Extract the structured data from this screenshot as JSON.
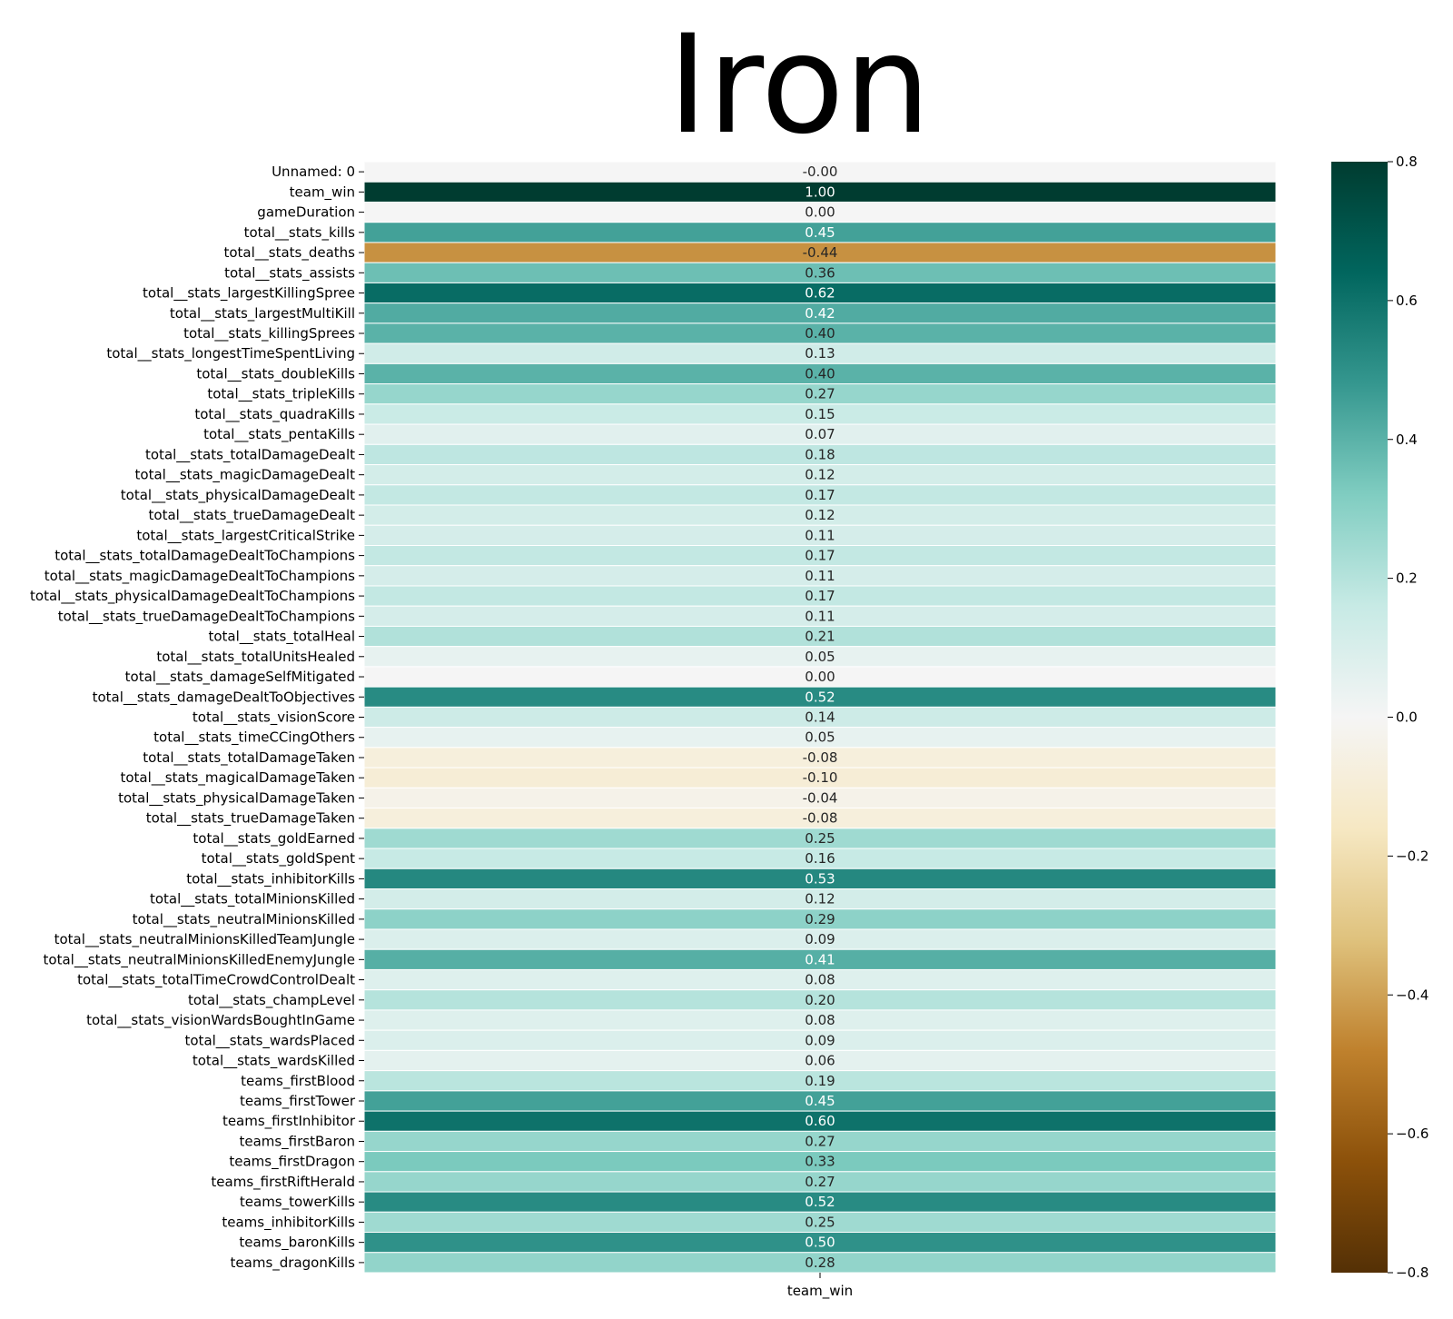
{
  "chart_data": {
    "type": "heatmap",
    "title": "Iron",
    "x_categories": [
      "team_win"
    ],
    "row_labels": [
      "Unnamed: 0",
      "team_win",
      "gameDuration",
      "total__stats_kills",
      "total__stats_deaths",
      "total__stats_assists",
      "total__stats_largestKillingSpree",
      "total__stats_largestMultiKill",
      "total__stats_killingSprees",
      "total__stats_longestTimeSpentLiving",
      "total__stats_doubleKills",
      "total__stats_tripleKills",
      "total__stats_quadraKills",
      "total__stats_pentaKills",
      "total__stats_totalDamageDealt",
      "total__stats_magicDamageDealt",
      "total__stats_physicalDamageDealt",
      "total__stats_trueDamageDealt",
      "total__stats_largestCriticalStrike",
      "total__stats_totalDamageDealtToChampions",
      "total__stats_magicDamageDealtToChampions",
      "total__stats_physicalDamageDealtToChampions",
      "total__stats_trueDamageDealtToChampions",
      "total__stats_totalHeal",
      "total__stats_totalUnitsHealed",
      "total__stats_damageSelfMitigated",
      "total__stats_damageDealtToObjectives",
      "total__stats_visionScore",
      "total__stats_timeCCingOthers",
      "total__stats_totalDamageTaken",
      "total__stats_magicalDamageTaken",
      "total__stats_physicalDamageTaken",
      "total__stats_trueDamageTaken",
      "total__stats_goldEarned",
      "total__stats_goldSpent",
      "total__stats_inhibitorKills",
      "total__stats_totalMinionsKilled",
      "total__stats_neutralMinionsKilled",
      "total__stats_neutralMinionsKilledTeamJungle",
      "total__stats_neutralMinionsKilledEnemyJungle",
      "total__stats_totalTimeCrowdControlDealt",
      "total__stats_champLevel",
      "total__stats_visionWardsBoughtInGame",
      "total__stats_wardsPlaced",
      "total__stats_wardsKilled",
      "teams_firstBlood",
      "teams_firstTower",
      "teams_firstInhibitor",
      "teams_firstBaron",
      "teams_firstDragon",
      "teams_firstRiftHerald",
      "teams_towerKills",
      "teams_inhibitorKills",
      "teams_baronKills",
      "teams_dragonKills"
    ],
    "values": [
      -0.001,
      1.0,
      0.0,
      0.45,
      -0.44,
      0.36,
      0.62,
      0.42,
      0.4,
      0.13,
      0.4,
      0.27,
      0.15,
      0.07,
      0.18,
      0.12,
      0.17,
      0.12,
      0.11,
      0.17,
      0.11,
      0.17,
      0.11,
      0.21,
      0.05,
      0.0,
      0.52,
      0.14,
      0.05,
      -0.08,
      -0.1,
      -0.04,
      -0.08,
      0.25,
      0.16,
      0.53,
      0.12,
      0.29,
      0.09,
      0.41,
      0.08,
      0.2,
      0.08,
      0.09,
      0.06,
      0.19,
      0.45,
      0.6,
      0.27,
      0.33,
      0.27,
      0.52,
      0.25,
      0.5,
      0.28
    ],
    "value_labels": [
      "-0.00",
      "1.00",
      "0.00",
      "0.45",
      "-0.44",
      "0.36",
      "0.62",
      "0.42",
      "0.40",
      "0.13",
      "0.40",
      "0.27",
      "0.15",
      "0.07",
      "0.18",
      "0.12",
      "0.17",
      "0.12",
      "0.11",
      "0.17",
      "0.11",
      "0.17",
      "0.11",
      "0.21",
      "0.05",
      "0.00",
      "0.52",
      "0.14",
      "0.05",
      "-0.08",
      "-0.10",
      "-0.04",
      "-0.08",
      "0.25",
      "0.16",
      "0.53",
      "0.12",
      "0.29",
      "0.09",
      "0.41",
      "0.08",
      "0.20",
      "0.08",
      "0.09",
      "0.06",
      "0.19",
      "0.45",
      "0.60",
      "0.27",
      "0.33",
      "0.27",
      "0.52",
      "0.25",
      "0.50",
      "0.28"
    ],
    "colorbar": {
      "vmin": -0.8,
      "vmax": 0.8,
      "ticks": [
        0.8,
        0.6,
        0.4,
        0.2,
        0.0,
        -0.2,
        -0.4,
        -0.6,
        -0.8
      ],
      "tick_labels": [
        "0.8",
        "0.6",
        "0.4",
        "0.2",
        "0.0",
        "−0.2",
        "−0.4",
        "−0.6",
        "−0.8"
      ],
      "colormap": "BrBG",
      "stops": [
        "#543005",
        "#8c510a",
        "#bf812d",
        "#dfc27d",
        "#f6e8c3",
        "#f5f5f5",
        "#c7eae5",
        "#80cdc1",
        "#35978f",
        "#01665e",
        "#003c30"
      ]
    },
    "grid": false,
    "cell_separator_color": "#ffffff"
  }
}
